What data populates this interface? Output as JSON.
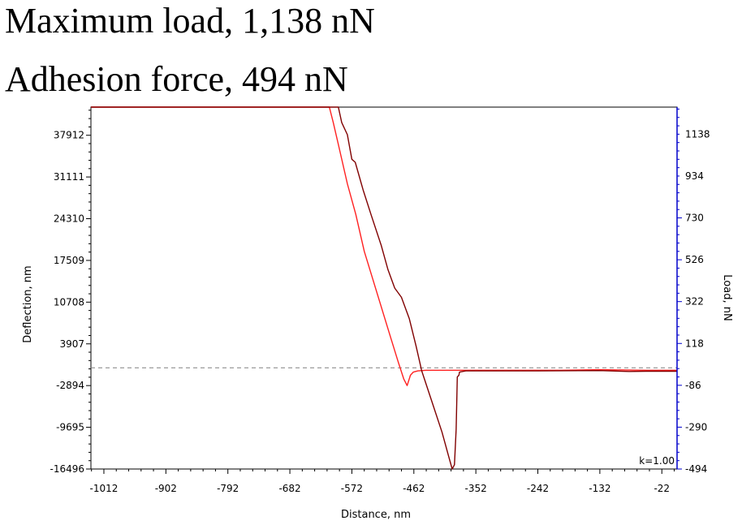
{
  "headline": {
    "line1": "Maximum load, 1,138 nN",
    "line2": "Adhesion force, 494 nN"
  },
  "chart_data": {
    "type": "line",
    "xlabel": "Distance, nm",
    "ylabel": "Deflection, nm",
    "y2label": "Load, nN",
    "annotation": "k=1.00",
    "xlim": [
      -1035,
      5
    ],
    "ylim": [
      -16496,
      42500
    ],
    "y2lim": [
      -494,
      1270
    ],
    "x_ticks": [
      -1012,
      -902,
      -792,
      -682,
      -572,
      -462,
      -352,
      -242,
      -132,
      -22
    ],
    "y_ticks": [
      37912,
      31111,
      24310,
      17509,
      10708,
      3907,
      -2894,
      -9695,
      -16496
    ],
    "y2_ticks": [
      1138,
      934,
      730,
      526,
      322,
      118,
      -86,
      -290,
      -494
    ],
    "zero_line": 0,
    "colors": {
      "approach": "#ff2020",
      "retract": "#800000",
      "right_axis": "#0000cc",
      "zero_line": "#808080"
    },
    "series": [
      {
        "role": "approach",
        "x": [
          -1035,
          -612,
          -605,
          -595,
          -580,
          -565,
          -550,
          -535,
          -520,
          -505,
          -490,
          -480,
          -474,
          -468,
          -463,
          -455,
          -440,
          -400,
          -300,
          -200,
          -132,
          -50,
          5
        ],
        "y": [
          42500,
          42500,
          40000,
          36000,
          30000,
          25000,
          19000,
          14500,
          10000,
          5500,
          1000,
          -1800,
          -2900,
          -1200,
          -700,
          -500,
          -400,
          -400,
          -400,
          -400,
          -300,
          -400,
          -400
        ]
      },
      {
        "role": "retract",
        "x": [
          -1035,
          -596,
          -590,
          -580,
          -572,
          -566,
          -552,
          -538,
          -520,
          -508,
          -496,
          -484,
          -470,
          -458,
          -448,
          -430,
          -412,
          -400,
          -394,
          -390,
          -387,
          -385,
          -382,
          -381,
          -370,
          -352,
          -300,
          -242,
          -132,
          -80,
          -50,
          5
        ],
        "y": [
          42500,
          42500,
          40000,
          38000,
          34000,
          33500,
          29000,
          25000,
          20000,
          16000,
          13000,
          11500,
          8000,
          3500,
          -500,
          -5500,
          -10500,
          -14500,
          -16500,
          -15800,
          -10000,
          -1500,
          -1200,
          -700,
          -500,
          -500,
          -500,
          -500,
          -450,
          -600,
          -550,
          -550
        ]
      }
    ]
  }
}
